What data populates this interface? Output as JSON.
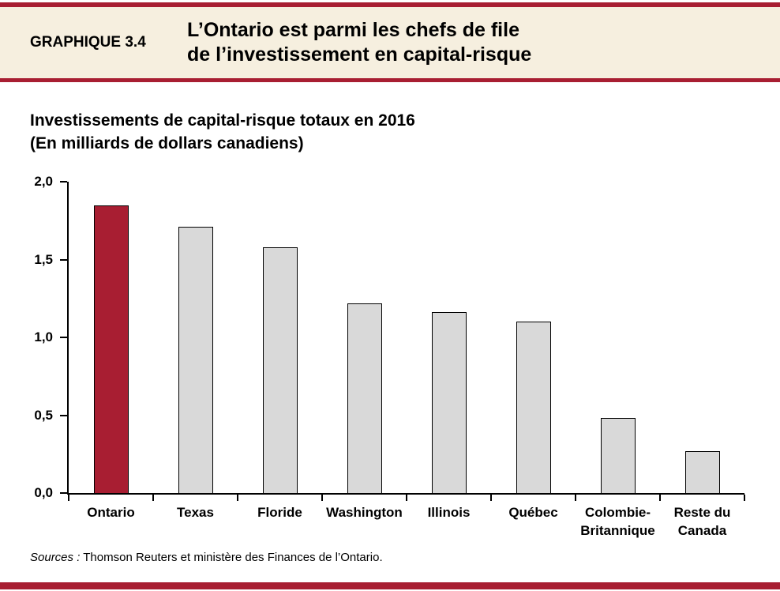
{
  "header": {
    "label": "GRAPHIQUE 3.4",
    "title_line1": "L’Ontario est parmi les chefs de file",
    "title_line2": "de l’investissement en capital-risque"
  },
  "subtitle": {
    "line1": "Investissements de capital-risque totaux en 2016",
    "line2": "(En milliards de dollars canadiens)"
  },
  "footer": {
    "source_label": "Sources :",
    "source_text": " Thomson Reuters et ministère des Finances de l’Ontario."
  },
  "theme": {
    "accent_red": "#A81E32",
    "bar_fill": "#D9D9D9",
    "bar_border": "#000000",
    "header_background": "#F6EFDF"
  },
  "chart_data": {
    "type": "bar",
    "title": "Investissements de capital-risque totaux en 2016",
    "ylabel": "En milliards de dollars canadiens",
    "categories": [
      "Ontario",
      "Texas",
      "Floride",
      "Washington",
      "Illinois",
      "Québec",
      "Colombie-Britannique",
      "Reste du Canada"
    ],
    "category_label_lines": [
      [
        "Ontario"
      ],
      [
        "Texas"
      ],
      [
        "Floride"
      ],
      [
        "Washington"
      ],
      [
        "Illinois"
      ],
      [
        "Québec"
      ],
      [
        "Colombie-",
        "Britannique"
      ],
      [
        "Reste du",
        "Canada"
      ]
    ],
    "values": [
      1.85,
      1.71,
      1.58,
      1.22,
      1.16,
      1.1,
      0.48,
      0.27
    ],
    "highlighted_category": "Ontario",
    "ylim": [
      0,
      2.0
    ],
    "yticks": [
      0,
      0.5,
      1.0,
      1.5,
      2.0
    ],
    "ytick_labels": [
      "0,0",
      "0,5",
      "1,0",
      "1,5",
      "2,0"
    ],
    "grid": false,
    "legend": false
  }
}
